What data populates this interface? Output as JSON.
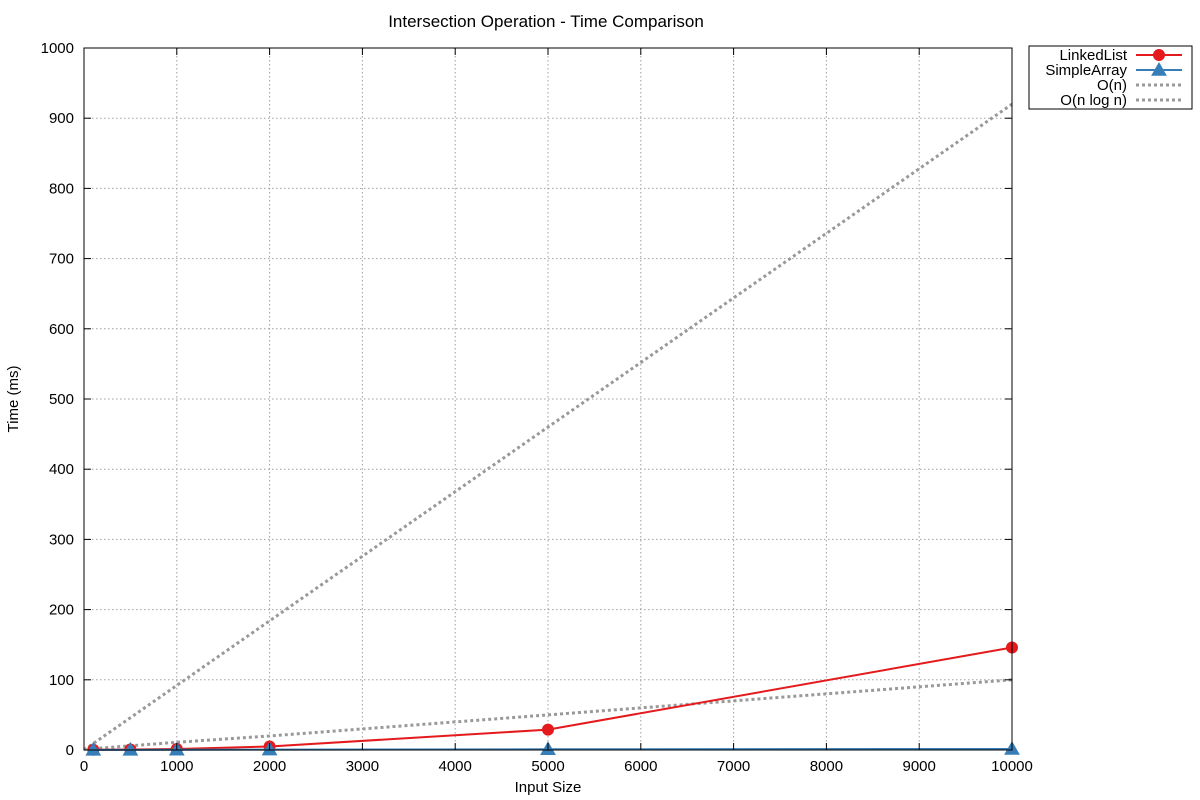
{
  "chart_data": {
    "type": "line",
    "title": "Intersection Operation - Time Comparison",
    "xlabel": "Input Size",
    "ylabel": "Time (ms)",
    "xlim": [
      0,
      10000
    ],
    "ylim": [
      0,
      1000
    ],
    "x_ticks": [
      0,
      1000,
      2000,
      3000,
      4000,
      5000,
      6000,
      7000,
      8000,
      9000,
      10000
    ],
    "y_ticks": [
      0,
      100,
      200,
      300,
      400,
      500,
      600,
      700,
      800,
      900,
      1000
    ],
    "grid": true,
    "legend_position": "top-right outside",
    "series": [
      {
        "name": "LinkedList",
        "color": "#e41a1c",
        "line_style": "solid",
        "marker": "circle",
        "x": [
          100,
          500,
          1000,
          2000,
          5000,
          10000
        ],
        "y": [
          0.3,
          0.8,
          1.5,
          5,
          29,
          146
        ]
      },
      {
        "name": "SimpleArray",
        "color": "#377eb8",
        "line_style": "solid",
        "marker": "triangle",
        "x": [
          100,
          500,
          1000,
          2000,
          5000,
          10000
        ],
        "y": [
          0.1,
          0.2,
          0.3,
          0.5,
          1,
          1.5
        ]
      },
      {
        "name": "O(n)",
        "color": "#999999",
        "line_style": "dotted",
        "marker": "none",
        "x": [
          0,
          10000
        ],
        "y": [
          0,
          920
        ]
      },
      {
        "name": "O(n log n)",
        "color": "#999999",
        "line_style": "dotted",
        "marker": "none",
        "x": [
          100,
          500,
          1000,
          2000,
          3000,
          4000,
          5000,
          6000,
          7000,
          8000,
          9000,
          10000
        ],
        "y": [
          2,
          6,
          11,
          20,
          30,
          40,
          50,
          60,
          70,
          80,
          90,
          100
        ]
      }
    ]
  }
}
